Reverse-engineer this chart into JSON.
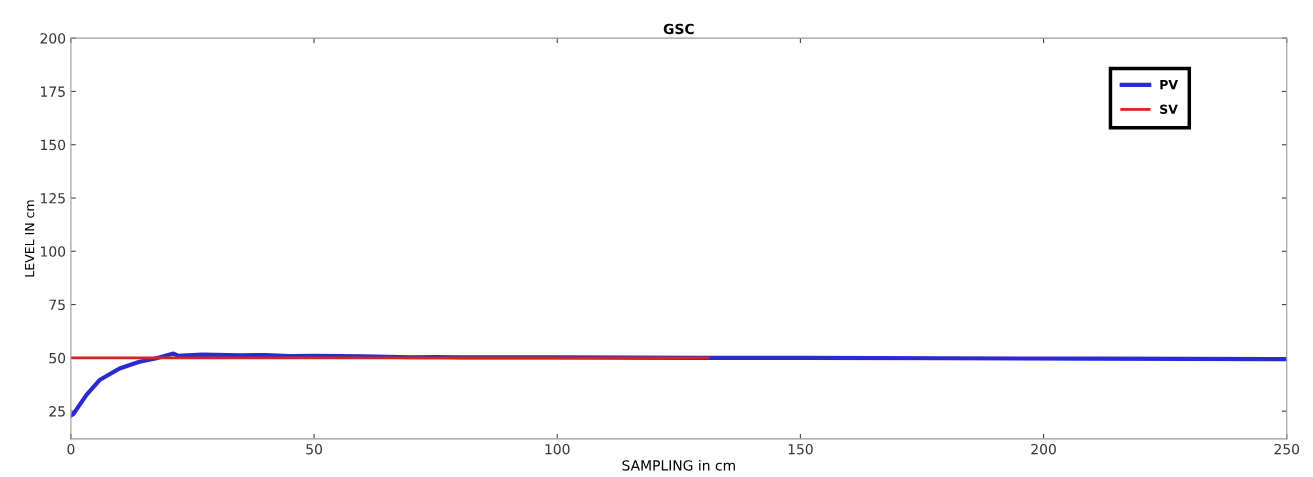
{
  "chart_data": {
    "type": "line",
    "title": "GSC",
    "xlabel": "SAMPLING in cm",
    "ylabel": "LEVEL IN cm",
    "xlim": [
      0,
      250
    ],
    "xticks": [
      0,
      50,
      100,
      150,
      200,
      250
    ],
    "ylim": [
      12,
      200
    ],
    "yticks": [
      25,
      50,
      75,
      100,
      125,
      150,
      175,
      200
    ],
    "grid": false,
    "legend": "top right",
    "marker": "none",
    "line_style": "solid",
    "series": [
      {
        "name": "PV",
        "color": "#2a2ad0",
        "x": [
          0,
          0.5,
          3.2,
          5.9,
          10,
          14.1,
          17.4,
          21.1,
          22,
          27,
          35,
          40,
          45,
          50,
          60,
          70,
          75,
          80,
          100,
          130,
          150,
          180,
          210,
          250
        ],
        "values": [
          23,
          23.6,
          32.6,
          39.6,
          45,
          48.2,
          49.7,
          52,
          51,
          51.5,
          51.2,
          51.3,
          50.8,
          51,
          50.7,
          50.3,
          50.4,
          50.2,
          50.2,
          50,
          50,
          49.8,
          49.6,
          49.4
        ]
      },
      {
        "name": "SV",
        "color": "#dd2020",
        "x": [
          0,
          131
        ],
        "values": [
          50,
          50
        ]
      }
    ]
  }
}
